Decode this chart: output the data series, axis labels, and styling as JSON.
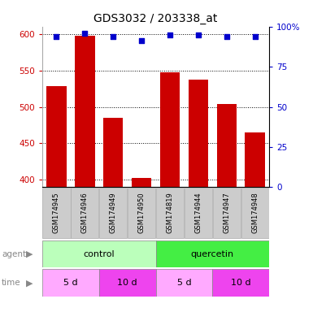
{
  "title": "GDS3032 / 203338_at",
  "samples": [
    "GSM174945",
    "GSM174946",
    "GSM174949",
    "GSM174950",
    "GSM174819",
    "GSM174944",
    "GSM174947",
    "GSM174948"
  ],
  "counts": [
    528,
    597,
    485,
    403,
    547,
    537,
    504,
    465
  ],
  "percentile_ranks": [
    94,
    96,
    94,
    91,
    95,
    95,
    94,
    94
  ],
  "ylim_left": [
    390,
    610
  ],
  "yticks_left": [
    400,
    450,
    500,
    550,
    600
  ],
  "ylim_right": [
    0,
    100
  ],
  "yticks_right": [
    0,
    25,
    50,
    75,
    100
  ],
  "bar_color": "#cc0000",
  "dot_color": "#0000cc",
  "agent_groups": [
    {
      "label": "control",
      "start": 0,
      "end": 4,
      "color": "#bbffbb"
    },
    {
      "label": "quercetin",
      "start": 4,
      "end": 8,
      "color": "#44ee44"
    }
  ],
  "time_groups": [
    {
      "label": "5 d",
      "start": 0,
      "end": 2,
      "color": "#ffaaff"
    },
    {
      "label": "10 d",
      "start": 2,
      "end": 4,
      "color": "#ee44ee"
    },
    {
      "label": "5 d",
      "start": 4,
      "end": 6,
      "color": "#ffaaff"
    },
    {
      "label": "10 d",
      "start": 6,
      "end": 8,
      "color": "#ee44ee"
    }
  ],
  "legend_count_color": "#cc0000",
  "legend_dot_color": "#0000cc",
  "bg_color": "#ffffff",
  "grid_color": "#000000",
  "tick_label_color_left": "#cc0000",
  "tick_label_color_right": "#0000cc",
  "sample_box_color": "#cccccc",
  "sample_box_edge": "#aaaaaa"
}
